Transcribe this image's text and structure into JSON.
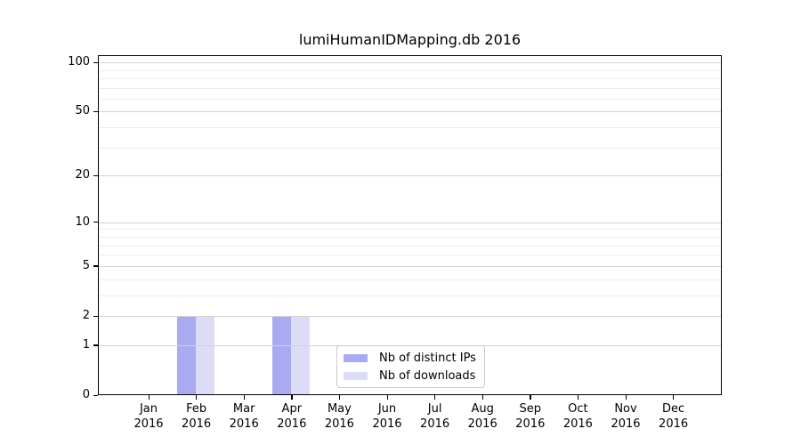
{
  "chart_data": {
    "type": "bar",
    "title": "lumiHumanIDMapping.db 2016",
    "categories": [
      "Jan",
      "Feb",
      "Mar",
      "Apr",
      "May",
      "Jun",
      "Jul",
      "Aug",
      "Sep",
      "Oct",
      "Nov",
      "Dec"
    ],
    "x_tick_year": "2016",
    "series": [
      {
        "name": "Nb of distinct IPs",
        "color": "#a9aaf2",
        "values": [
          0,
          2,
          0,
          2,
          0,
          0,
          0,
          0,
          0,
          0,
          0,
          0
        ]
      },
      {
        "name": "Nb of downloads",
        "color": "#dcdcf8",
        "values": [
          0,
          2,
          0,
          2,
          0,
          0,
          0,
          0,
          0,
          0,
          0,
          0
        ]
      }
    ],
    "yscale": "log1p",
    "ylim": [
      0,
      110.5
    ],
    "y_major_ticks": [
      0,
      1,
      2,
      5,
      10,
      20,
      50,
      100
    ],
    "y_minor_gridlines": [
      3,
      4,
      6,
      7,
      8,
      9,
      30,
      40,
      60,
      70,
      80,
      90
    ],
    "grid": "horizontal",
    "legend_position": "lower-center-inside"
  },
  "colors": {
    "major_grid": "#d3d3d3",
    "minor_grid": "#ededed",
    "axis": "#000000",
    "legend_border": "#c9c9c9",
    "background": "#ffffff",
    "text": "#000000"
  }
}
